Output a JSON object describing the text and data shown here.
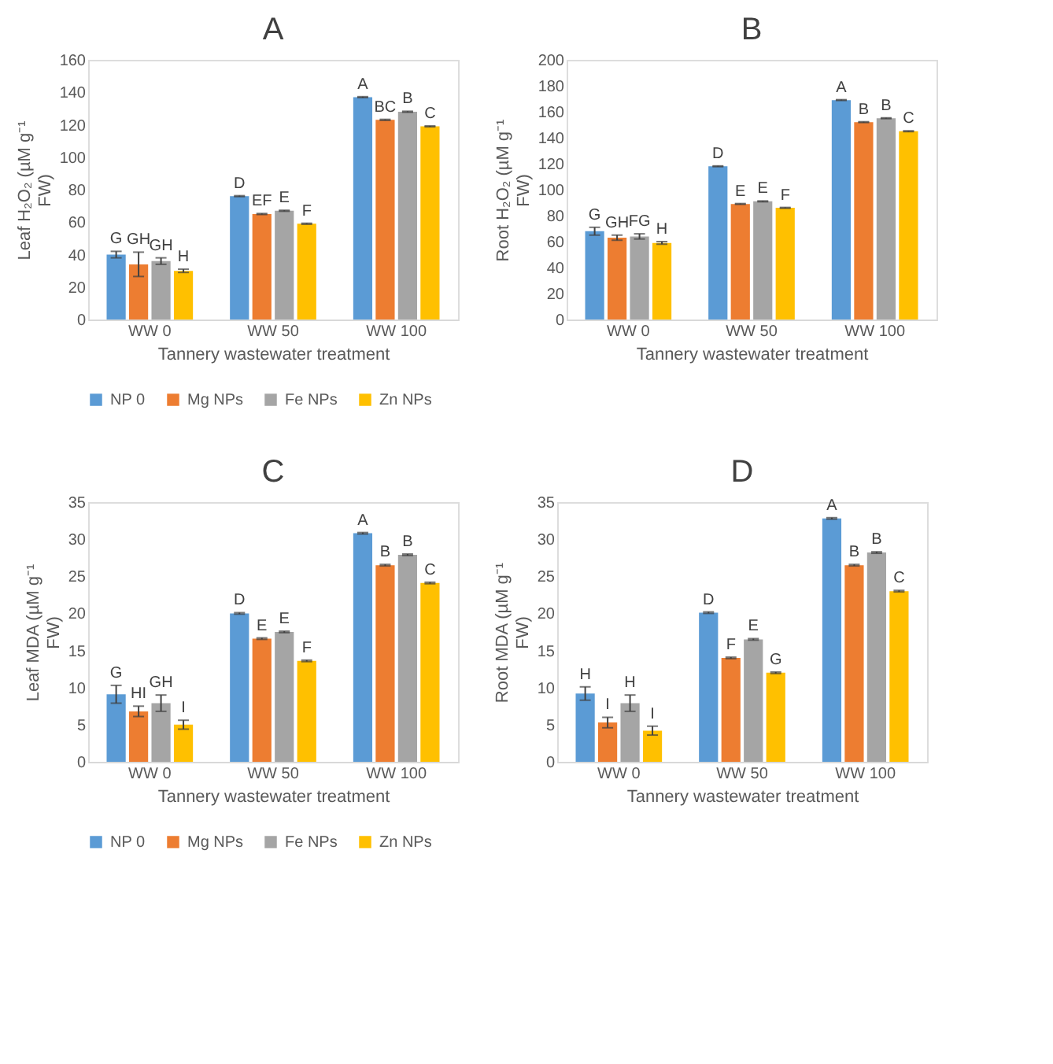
{
  "chart_data": [
    {
      "type": "bar",
      "title": "A",
      "xlabel": "Tannery wastewater treatment",
      "ylabel": "Leaf H₂O₂ (µM g⁻¹ FW)",
      "categories": [
        "WW 0",
        "WW 50",
        "WW 100"
      ],
      "ylim": [
        0,
        160
      ],
      "yticks": [
        0,
        20,
        40,
        60,
        80,
        100,
        120,
        140,
        160
      ],
      "grid": false,
      "legend": "bottom",
      "series": [
        {
          "name": "NP 0",
          "color": "#5b9bd5",
          "values": [
            40,
            76,
            137
          ],
          "errors": [
            2,
            0.3,
            0.3
          ]
        },
        {
          "name": "Mg NPs",
          "color": "#ed7d31",
          "values": [
            34,
            65,
            123
          ],
          "errors": [
            7.5,
            0.3,
            0.3
          ]
        },
        {
          "name": "Fe NPs",
          "color": "#a5a5a5",
          "values": [
            36,
            67,
            128
          ],
          "errors": [
            2,
            0.3,
            0.3
          ]
        },
        {
          "name": "Zn NPs",
          "color": "#ffc000",
          "values": [
            30,
            59,
            119
          ],
          "errors": [
            1,
            0.3,
            0.3
          ]
        }
      ],
      "annotations": [
        "G",
        "GH",
        "GH",
        "H",
        "D",
        "EF",
        "E",
        "F",
        "A",
        "BC",
        "B",
        "C"
      ]
    },
    {
      "type": "bar",
      "title": "B",
      "xlabel": "Tannery wastewater treatment",
      "ylabel": "Root H₂O₂ (µM g⁻¹ FW)",
      "categories": [
        "WW 0",
        "WW 50",
        "WW 100"
      ],
      "ylim": [
        0,
        200
      ],
      "yticks": [
        0,
        20,
        40,
        60,
        80,
        100,
        120,
        140,
        160,
        180,
        200
      ],
      "grid": false,
      "legend": "bottom",
      "series": [
        {
          "name": "NP 0",
          "color": "#5b9bd5",
          "values": [
            68,
            118,
            169
          ],
          "errors": [
            3,
            0.3,
            0.3
          ]
        },
        {
          "name": "Mg NPs",
          "color": "#ed7d31",
          "values": [
            63,
            89,
            152
          ],
          "errors": [
            2,
            0.3,
            0.3
          ]
        },
        {
          "name": "Fe NPs",
          "color": "#a5a5a5",
          "values": [
            64,
            91,
            155
          ],
          "errors": [
            2,
            0.3,
            0.3
          ]
        },
        {
          "name": "Zn NPs",
          "color": "#ffc000",
          "values": [
            59,
            86,
            145
          ],
          "errors": [
            1,
            0.3,
            0.3
          ]
        }
      ],
      "annotations": [
        "G",
        "GH",
        "FG",
        "H",
        "D",
        "E",
        "E",
        "F",
        "A",
        "B",
        "B",
        "C"
      ]
    },
    {
      "type": "bar",
      "title": "C",
      "xlabel": "Tannery wastewater treatment",
      "ylabel": "Leaf MDA  (µM g⁻¹ FW)",
      "categories": [
        "WW 0",
        "WW 50",
        "WW 100"
      ],
      "ylim": [
        0,
        35
      ],
      "yticks": [
        0,
        5,
        10,
        15,
        20,
        25,
        30,
        35
      ],
      "grid": false,
      "legend": "bottom",
      "series": [
        {
          "name": "NP 0",
          "color": "#5b9bd5",
          "values": [
            9.1,
            20,
            30.8
          ],
          "errors": [
            1.2,
            0.1,
            0.1
          ]
        },
        {
          "name": "Mg NPs",
          "color": "#ed7d31",
          "values": [
            6.8,
            16.6,
            26.5
          ],
          "errors": [
            0.7,
            0.1,
            0.1
          ]
        },
        {
          "name": "Fe NPs",
          "color": "#a5a5a5",
          "values": [
            7.9,
            17.5,
            27.9
          ],
          "errors": [
            1.1,
            0.1,
            0.1
          ]
        },
        {
          "name": "Zn NPs",
          "color": "#ffc000",
          "values": [
            5.0,
            13.6,
            24.1
          ],
          "errors": [
            0.6,
            0.1,
            0.1
          ]
        }
      ],
      "annotations": [
        "G",
        "HI",
        "GH",
        "I",
        "D",
        "E",
        "E",
        "F",
        "A",
        "B",
        "B",
        "C"
      ]
    },
    {
      "type": "bar",
      "title": "D",
      "xlabel": "Tannery wastewater treatment",
      "ylabel": "Root MDA (µM g⁻¹ FW)",
      "categories": [
        "WW 0",
        "WW 50",
        "WW 100"
      ],
      "ylim": [
        0,
        35
      ],
      "yticks": [
        0,
        5,
        10,
        15,
        20,
        25,
        30,
        35
      ],
      "grid": false,
      "legend": "bottom",
      "series": [
        {
          "name": "NP 0",
          "color": "#5b9bd5",
          "values": [
            9.2,
            20.1,
            32.8
          ],
          "errors": [
            0.9,
            0.1,
            0.1
          ]
        },
        {
          "name": "Mg NPs",
          "color": "#ed7d31",
          "values": [
            5.3,
            14.0,
            26.5
          ],
          "errors": [
            0.7,
            0.1,
            0.1
          ]
        },
        {
          "name": "Fe NPs",
          "color": "#a5a5a5",
          "values": [
            7.9,
            16.5,
            28.2
          ],
          "errors": [
            1.1,
            0.1,
            0.1
          ]
        },
        {
          "name": "Zn NPs",
          "color": "#ffc000",
          "values": [
            4.2,
            12.0,
            23.0
          ],
          "errors": [
            0.6,
            0.1,
            0.1
          ]
        }
      ],
      "annotations": [
        "H",
        "I",
        "H",
        "I",
        "D",
        "F",
        "E",
        "G",
        "A",
        "B",
        "B",
        "C"
      ]
    }
  ]
}
